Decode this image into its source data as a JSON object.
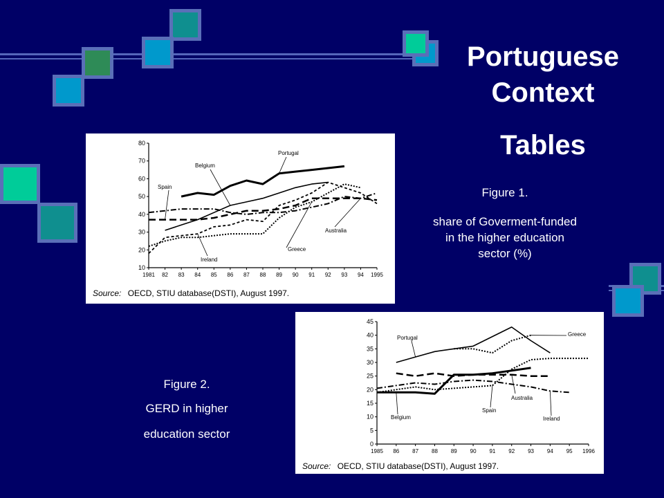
{
  "slide": {
    "title_line1": "Portuguese",
    "title_line2": "Context",
    "subtitle": "Tables",
    "fig1_caption_1": "Figure 1.",
    "fig1_caption_2": "share of Goverment-funded",
    "fig1_caption_3": "in the higher education",
    "fig1_caption_4": "sector (%)",
    "fig2_caption_1": "Figure 2.",
    "fig2_caption_2": "GERD in higher",
    "fig2_caption_3": "education sector"
  },
  "colors": {
    "background": "#000066",
    "square_border": "#5a6fb8",
    "teal": "#0f8f8f",
    "green": "#2e8b57",
    "cyan": "#0099cc",
    "mint": "#00cc99"
  },
  "chart_data": [
    {
      "type": "line",
      "title": "",
      "xlabel": "",
      "ylabel": "",
      "x": [
        "1981",
        "82",
        "83",
        "84",
        "85",
        "86",
        "87",
        "88",
        "89",
        "90",
        "91",
        "92",
        "93",
        "94",
        "1995"
      ],
      "ylim": [
        10,
        80
      ],
      "yticks": [
        10,
        20,
        30,
        40,
        50,
        60,
        70,
        80
      ],
      "source_label": "Source:",
      "source_text": "OECD, STIU database(DSTI), August 1997.",
      "series": [
        {
          "name": "Portugal",
          "style": "thick-solid",
          "values": [
            null,
            null,
            50,
            52,
            51,
            56,
            59,
            57,
            63,
            64,
            65,
            66,
            67,
            null,
            null
          ]
        },
        {
          "name": "Belgium",
          "style": "solid",
          "values": [
            null,
            31,
            34,
            37,
            41,
            45,
            47,
            49,
            52,
            55,
            57,
            58,
            null,
            null,
            null
          ]
        },
        {
          "name": "Spain",
          "style": "long-dash",
          "values": [
            37,
            37,
            37,
            37,
            38,
            40,
            42,
            42,
            43,
            45,
            49,
            49,
            49,
            49,
            48
          ]
        },
        {
          "name": "Greece",
          "style": "dotted",
          "values": [
            22,
            25,
            27,
            27,
            28,
            29,
            29,
            29,
            38,
            44,
            47,
            52,
            57,
            55,
            null
          ]
        },
        {
          "name": "Ireland",
          "style": "short-dash",
          "values": [
            18,
            27,
            28,
            29,
            33,
            34,
            37,
            36,
            45,
            48,
            52,
            58,
            55,
            52,
            46
          ]
        },
        {
          "name": "Australia",
          "style": "dash-dot",
          "values": [
            41,
            42,
            43,
            43,
            43,
            41,
            40,
            41,
            41,
            42,
            44,
            46,
            50,
            49,
            52
          ]
        }
      ]
    },
    {
      "type": "line",
      "title": "",
      "xlabel": "",
      "ylabel": "",
      "x": [
        "1985",
        "86",
        "87",
        "88",
        "89",
        "90",
        "91",
        "92",
        "93",
        "94",
        "95",
        "1996"
      ],
      "ylim": [
        0,
        45
      ],
      "yticks": [
        0,
        5,
        10,
        15,
        20,
        25,
        30,
        35,
        40,
        45
      ],
      "source_label": "Source:",
      "source_text": "OECD, STIU database(DSTI), August 1997.",
      "series": [
        {
          "name": "Portugal",
          "style": "solid",
          "values": [
            null,
            30,
            32,
            34,
            35,
            36,
            39.5,
            43,
            38,
            33.5,
            null,
            null
          ]
        },
        {
          "name": "Greece",
          "style": "dotted",
          "values": [
            null,
            null,
            null,
            null,
            35,
            35,
            33.5,
            38,
            40,
            null,
            null,
            null
          ]
        },
        {
          "name": "Belgium",
          "style": "thick-solid",
          "values": [
            19,
            19,
            19,
            18.5,
            25.5,
            25.5,
            26,
            27,
            28,
            null,
            null,
            null
          ]
        },
        {
          "name": "Spain",
          "style": "dotted",
          "values": [
            19,
            20,
            21,
            20,
            20.5,
            21,
            21.5,
            27.5,
            31,
            31.5,
            31.5,
            31.5
          ]
        },
        {
          "name": "Australia",
          "style": "long-dash",
          "values": [
            null,
            26,
            25,
            26,
            25,
            25.5,
            25.5,
            25.5,
            25,
            25,
            null,
            null
          ]
        },
        {
          "name": "Ireland",
          "style": "dash-dot",
          "values": [
            20.5,
            21.5,
            22.5,
            22,
            23,
            23.5,
            23,
            22,
            21,
            19.5,
            19,
            null
          ]
        }
      ]
    }
  ]
}
